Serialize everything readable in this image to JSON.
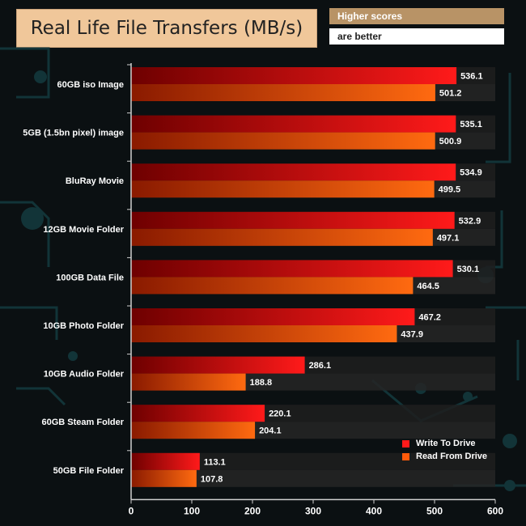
{
  "header": {
    "title": "Real Life File Transfers (MB/s)",
    "note_line1": "Higher scores",
    "note_line2": "are better"
  },
  "colors": {
    "write": "#ff1a1a",
    "read": "#ff5a0a",
    "background": "#0b1012"
  },
  "chart_data": {
    "type": "bar",
    "orientation": "horizontal",
    "title": "Real Life File Transfers (MB/s)",
    "categories": [
      "60GB iso Image",
      "5GB (1.5bn pixel) image",
      "BluRay Movie",
      "12GB Movie Folder",
      "100GB Data File",
      "10GB Photo Folder",
      "10GB Audio Folder",
      "60GB Steam Folder",
      "50GB File Folder"
    ],
    "series": [
      {
        "name": "Write To  Drive",
        "values": [
          536.1,
          535.1,
          534.9,
          532.9,
          530.1,
          467.2,
          286.1,
          220.1,
          113.1
        ]
      },
      {
        "name": "Read From  Drive",
        "values": [
          501.2,
          500.9,
          499.5,
          497.1,
          464.5,
          437.9,
          188.8,
          204.1,
          107.8
        ]
      }
    ],
    "xlim": [
      0,
      600
    ],
    "xticks": [
      0,
      100,
      200,
      300,
      400,
      500,
      600
    ],
    "grid": false,
    "legend_position": "bottom-right"
  }
}
